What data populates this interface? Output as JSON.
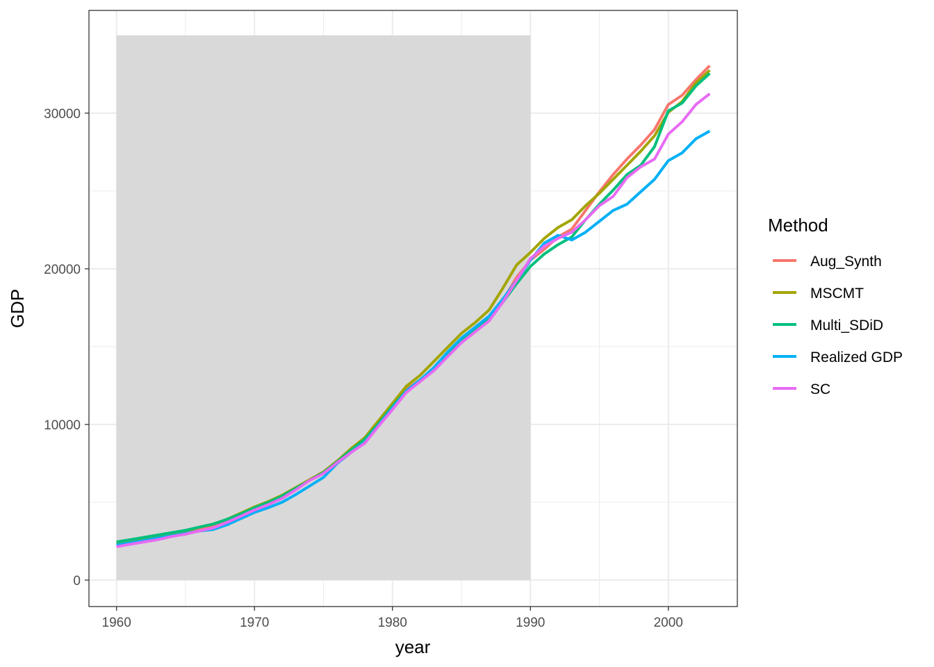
{
  "chart_data": {
    "type": "line",
    "xlabel": "year",
    "ylabel": "GDP",
    "xlim": [
      1958,
      2005
    ],
    "ylim": [
      -1700,
      36600
    ],
    "x_ticks": [
      1960,
      1970,
      1980,
      1990,
      2000
    ],
    "y_ticks": [
      0,
      10000,
      20000,
      30000
    ],
    "x_tick_labels": [
      "1960",
      "1970",
      "1980",
      "1990",
      "2000"
    ],
    "y_tick_labels": [
      "0",
      "10000",
      "20000",
      "30000"
    ],
    "grid": true,
    "theme": "bw",
    "shaded_region": {
      "x": [
        1960,
        1990
      ],
      "y": [
        0,
        35000
      ],
      "color": "#d9d9d9"
    },
    "legend": {
      "title": "Method",
      "position": "right"
    },
    "x": [
      1960,
      1961,
      1962,
      1963,
      1964,
      1965,
      1966,
      1967,
      1968,
      1969,
      1970,
      1971,
      1972,
      1973,
      1974,
      1975,
      1976,
      1977,
      1978,
      1979,
      1980,
      1981,
      1982,
      1983,
      1984,
      1985,
      1986,
      1987,
      1988,
      1989,
      1990,
      1991,
      1992,
      1993,
      1994,
      1995,
      1996,
      1997,
      1998,
      1999,
      2000,
      2001,
      2002,
      2003
    ],
    "series": [
      {
        "name": "Aug_Synth",
        "color": "#F8766D",
        "values": [
          2300,
          2450,
          2600,
          2750,
          2900,
          3050,
          3250,
          3450,
          3750,
          4150,
          4550,
          4950,
          5350,
          5900,
          6450,
          6950,
          7650,
          8350,
          9050,
          10050,
          11150,
          12250,
          12850,
          13550,
          14550,
          15450,
          16050,
          16750,
          17950,
          19450,
          20550,
          21250,
          22050,
          22550,
          23750,
          24950,
          26050,
          27050,
          27950,
          28950,
          30550,
          31150,
          32150,
          33050
        ]
      },
      {
        "name": "MSCMT",
        "color": "#A3A500",
        "values": [
          2400,
          2550,
          2700,
          2850,
          3000,
          3150,
          3400,
          3600,
          3900,
          4300,
          4700,
          5050,
          5450,
          5950,
          6450,
          6950,
          7650,
          8450,
          9150,
          10250,
          11350,
          12450,
          13150,
          14050,
          14950,
          15850,
          16550,
          17350,
          18750,
          20250,
          21050,
          21950,
          22650,
          23150,
          24050,
          24850,
          25750,
          26650,
          27550,
          28550,
          30050,
          30750,
          31950,
          32750
        ]
      },
      {
        "name": "Multi_SDiD",
        "color": "#00BF7D",
        "values": [
          2450,
          2600,
          2750,
          2900,
          3050,
          3200,
          3400,
          3600,
          3900,
          4250,
          4650,
          5000,
          5400,
          5900,
          6400,
          6900,
          7600,
          8350,
          9050,
          10050,
          11150,
          12150,
          12850,
          13550,
          14550,
          15350,
          16050,
          16750,
          17850,
          19050,
          20150,
          20950,
          21550,
          22050,
          23150,
          24150,
          25050,
          26050,
          26650,
          27850,
          30150,
          30650,
          31750,
          32550
        ]
      },
      {
        "name": "Realized GDP",
        "color": "#00B0F6",
        "values": [
          2250,
          2400,
          2550,
          2700,
          2850,
          3000,
          3150,
          3250,
          3550,
          3950,
          4350,
          4650,
          5000,
          5500,
          6050,
          6600,
          7500,
          8200,
          8850,
          9950,
          11050,
          12150,
          12850,
          13650,
          14650,
          15550,
          16250,
          16950,
          18050,
          19250,
          20550,
          21650,
          22150,
          21850,
          22350,
          23050,
          23750,
          24150,
          24950,
          25750,
          26950,
          27450,
          28350,
          28850
        ]
      },
      {
        "name": "SC",
        "color": "#E76BF3",
        "values": [
          2150,
          2300,
          2450,
          2600,
          2800,
          2950,
          3150,
          3350,
          3700,
          4100,
          4500,
          4850,
          5250,
          5800,
          6400,
          6850,
          7550,
          8200,
          8800,
          9900,
          10950,
          12050,
          12750,
          13450,
          14350,
          15250,
          15950,
          16650,
          17850,
          19250,
          20650,
          21450,
          21950,
          22350,
          23150,
          24050,
          24650,
          25850,
          26550,
          27050,
          28650,
          29450,
          30550,
          31250
        ]
      }
    ]
  }
}
